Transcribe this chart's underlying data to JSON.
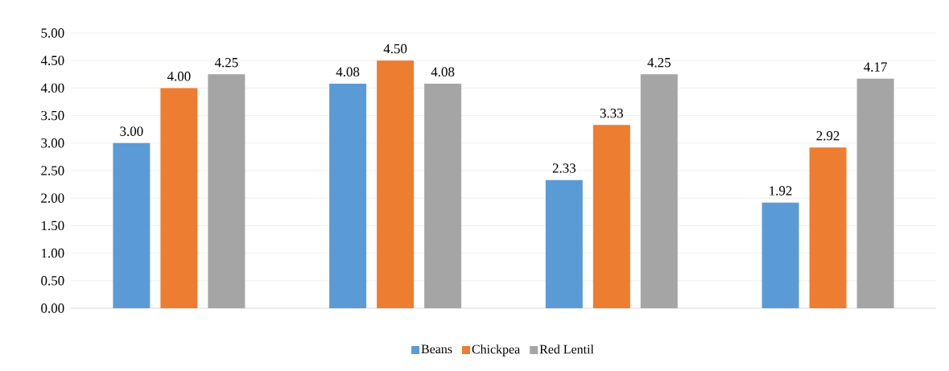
{
  "chart_data": {
    "type": "bar",
    "categories": [
      null,
      null,
      null,
      null
    ],
    "series": [
      {
        "name": "Beans",
        "color": "#5b9bd5",
        "values": [
          3.0,
          4.08,
          2.33,
          1.92
        ],
        "value_labels": [
          "3.00",
          "4.08",
          "2.33",
          "1.92"
        ]
      },
      {
        "name": "Chickpea",
        "color": "#ed7d31",
        "values": [
          4.0,
          4.5,
          3.33,
          2.92
        ],
        "value_labels": [
          "4.00",
          "4.50",
          "3.33",
          "2.92"
        ]
      },
      {
        "name": "Red Lentil",
        "color": "#a5a5a5",
        "values": [
          4.25,
          4.08,
          4.25,
          4.17
        ],
        "value_labels": [
          "4.25",
          "4.08",
          "4.25",
          "4.17"
        ]
      }
    ],
    "ylim": [
      0,
      5
    ],
    "yticks": [
      {
        "value": 0,
        "label": "0.00"
      },
      {
        "value": 0.5,
        "label": "0.50"
      },
      {
        "value": 1,
        "label": "1.00"
      },
      {
        "value": 1.5,
        "label": "1.50"
      },
      {
        "value": 2,
        "label": "2.00"
      },
      {
        "value": 2.5,
        "label": "2.50"
      },
      {
        "value": 3,
        "label": "3.00"
      },
      {
        "value": 3.5,
        "label": "3.50"
      },
      {
        "value": 4,
        "label": "4.00"
      },
      {
        "value": 4.5,
        "label": "4.50"
      },
      {
        "value": 5,
        "label": "5.00"
      }
    ],
    "grid": "y",
    "legend": "bottom"
  }
}
